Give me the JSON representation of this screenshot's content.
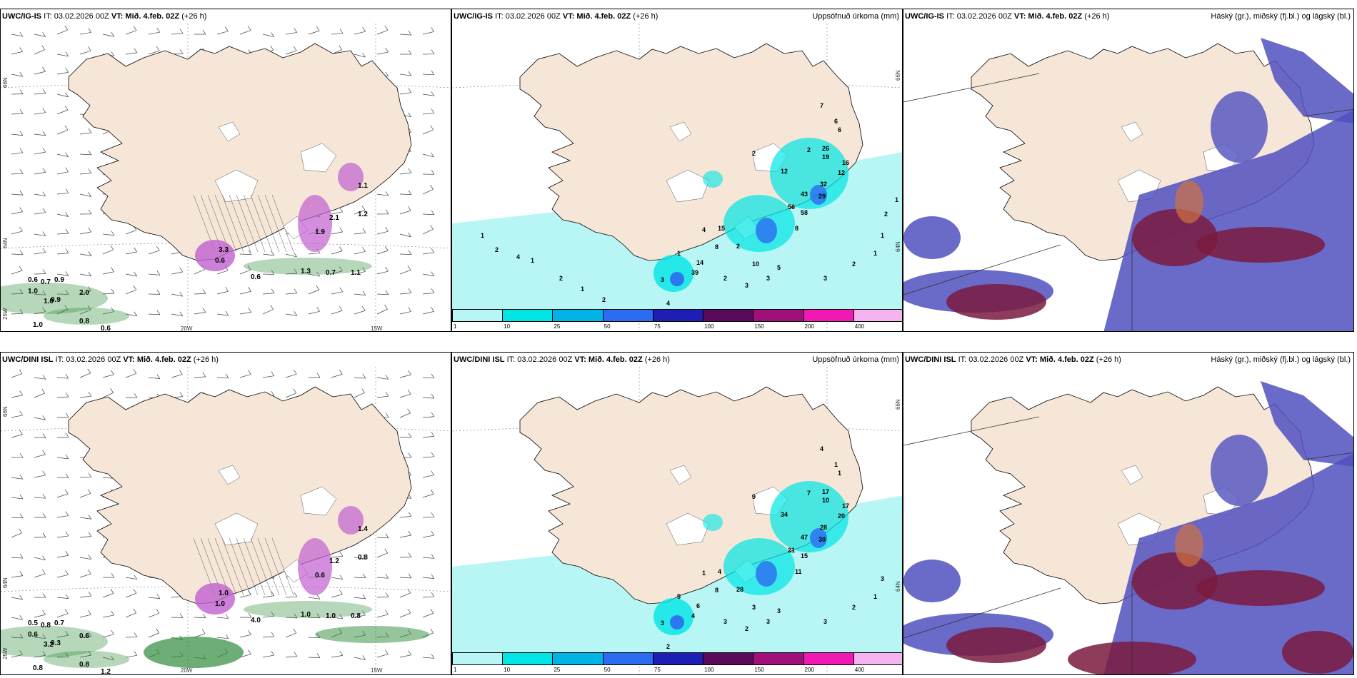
{
  "panels": [
    {
      "id": "top-left",
      "model": "UWC/IG-IS",
      "it_label": "IT: 03.02.2026 00Z",
      "vt_label": "VT: Mið. 4.feb. 02Z",
      "lead": "(+26 h)",
      "title_right": "",
      "labels": [
        "0.6",
        "0.7",
        "0.9",
        "1.0",
        "2.0",
        "0.9",
        "1.0",
        "0.8",
        "0.6",
        "1.0",
        "0.6",
        "1.3",
        "0.7",
        "1.1",
        "0.6",
        "1.1",
        "2.1",
        "3.3",
        "1.9",
        "1.2"
      ]
    },
    {
      "id": "top-mid",
      "model": "UWC/IG-IS",
      "it_label": "IT: 03.02.2026 00Z",
      "vt_label": "VT: Mið. 4.feb. 02Z",
      "lead": "(+26 h)",
      "title_right": "Uppsöfnuð úrkoma (mm)",
      "labels": [
        "7",
        "6",
        "6",
        "26",
        "19",
        "16",
        "12",
        "2",
        "2",
        "12",
        "32",
        "43",
        "29",
        "56",
        "58",
        "8",
        "15",
        "4",
        "2",
        "8",
        "1",
        "14",
        "39",
        "3",
        "2",
        "3",
        "3",
        "5",
        "10",
        "4",
        "3",
        "2",
        "1",
        "1",
        "2",
        "1",
        "1",
        "2",
        "4",
        "1",
        "2",
        "1",
        "2"
      ]
    },
    {
      "id": "top-right",
      "model": "UWC/IG-IS",
      "it_label": "IT: 03.02.2026 00Z",
      "vt_label": "VT: Mið. 4.feb. 02Z",
      "lead": "(+26 h)",
      "title_right": "Háský (gr.), miðský (fj.bl.) og lágský (bl.)",
      "labels": []
    },
    {
      "id": "bottom-left",
      "model": "UWC/DINI ISL",
      "it_label": "IT: 03.02.2026 00Z",
      "vt_label": "VT: Mið. 4.feb. 02Z",
      "lead": "(+26 h)",
      "title_right": "",
      "labels": [
        "0.5",
        "0.8",
        "0.7",
        "0.6",
        "0.6",
        "0.3",
        "3.2",
        "0.8",
        "1.2",
        "0.8",
        "4.0",
        "1.0",
        "1.0",
        "0.8",
        "1.0",
        "1.4",
        "1.2",
        "1.0",
        "0.6",
        "0.8"
      ]
    },
    {
      "id": "bottom-mid",
      "model": "UWC/DINI ISL",
      "it_label": "IT: 03.02.2026 00Z",
      "vt_label": "VT: Mið. 4.feb. 02Z",
      "lead": "(+26 h)",
      "title_right": "Uppsöfnuð úrkoma (mm)",
      "labels": [
        "4",
        "1",
        "1",
        "17",
        "10",
        "17",
        "20",
        "9",
        "7",
        "34",
        "28",
        "47",
        "30",
        "21",
        "15",
        "11",
        "4",
        "1",
        "28",
        "8",
        "5",
        "6",
        "4",
        "3",
        "3",
        "2",
        "3",
        "3",
        "3",
        "2",
        "3",
        "2",
        "1",
        "3"
      ]
    },
    {
      "id": "bottom-right",
      "model": "UWC/DINI ISL",
      "it_label": "IT: 03.02.2026 00Z",
      "vt_label": "VT: Mið. 4.feb. 02Z",
      "lead": "(+26 h)",
      "title_right": "Háský (gr.), miðský (fj.bl.) og lágský (bl.)",
      "labels": []
    }
  ],
  "axis_labels": {
    "lat_66": "66N",
    "lat_64": "64N",
    "lon_20": "20W",
    "lon_15": "15W",
    "lon_25": "25W"
  },
  "precip_colorbar": {
    "ticks": [
      "1",
      "10",
      "25",
      "50",
      "75",
      "100",
      "150",
      "200",
      "400"
    ],
    "colors": [
      "#b8f5f5",
      "#00e6e6",
      "#00b4e6",
      "#2c6cf0",
      "#1e1eb4",
      "#5a0a5a",
      "#a0107a",
      "#f019b4",
      "#f5b4f0"
    ]
  },
  "colors": {
    "land": "#f5e6d8",
    "cyan_light": "#b8f5f5",
    "cyan": "#00e6e6",
    "blue": "#2c6cf0",
    "deep_blue": "#5050c0",
    "maroon": "#7a1a40",
    "magenta": "#c060d0",
    "green": "#2e8b3a"
  }
}
